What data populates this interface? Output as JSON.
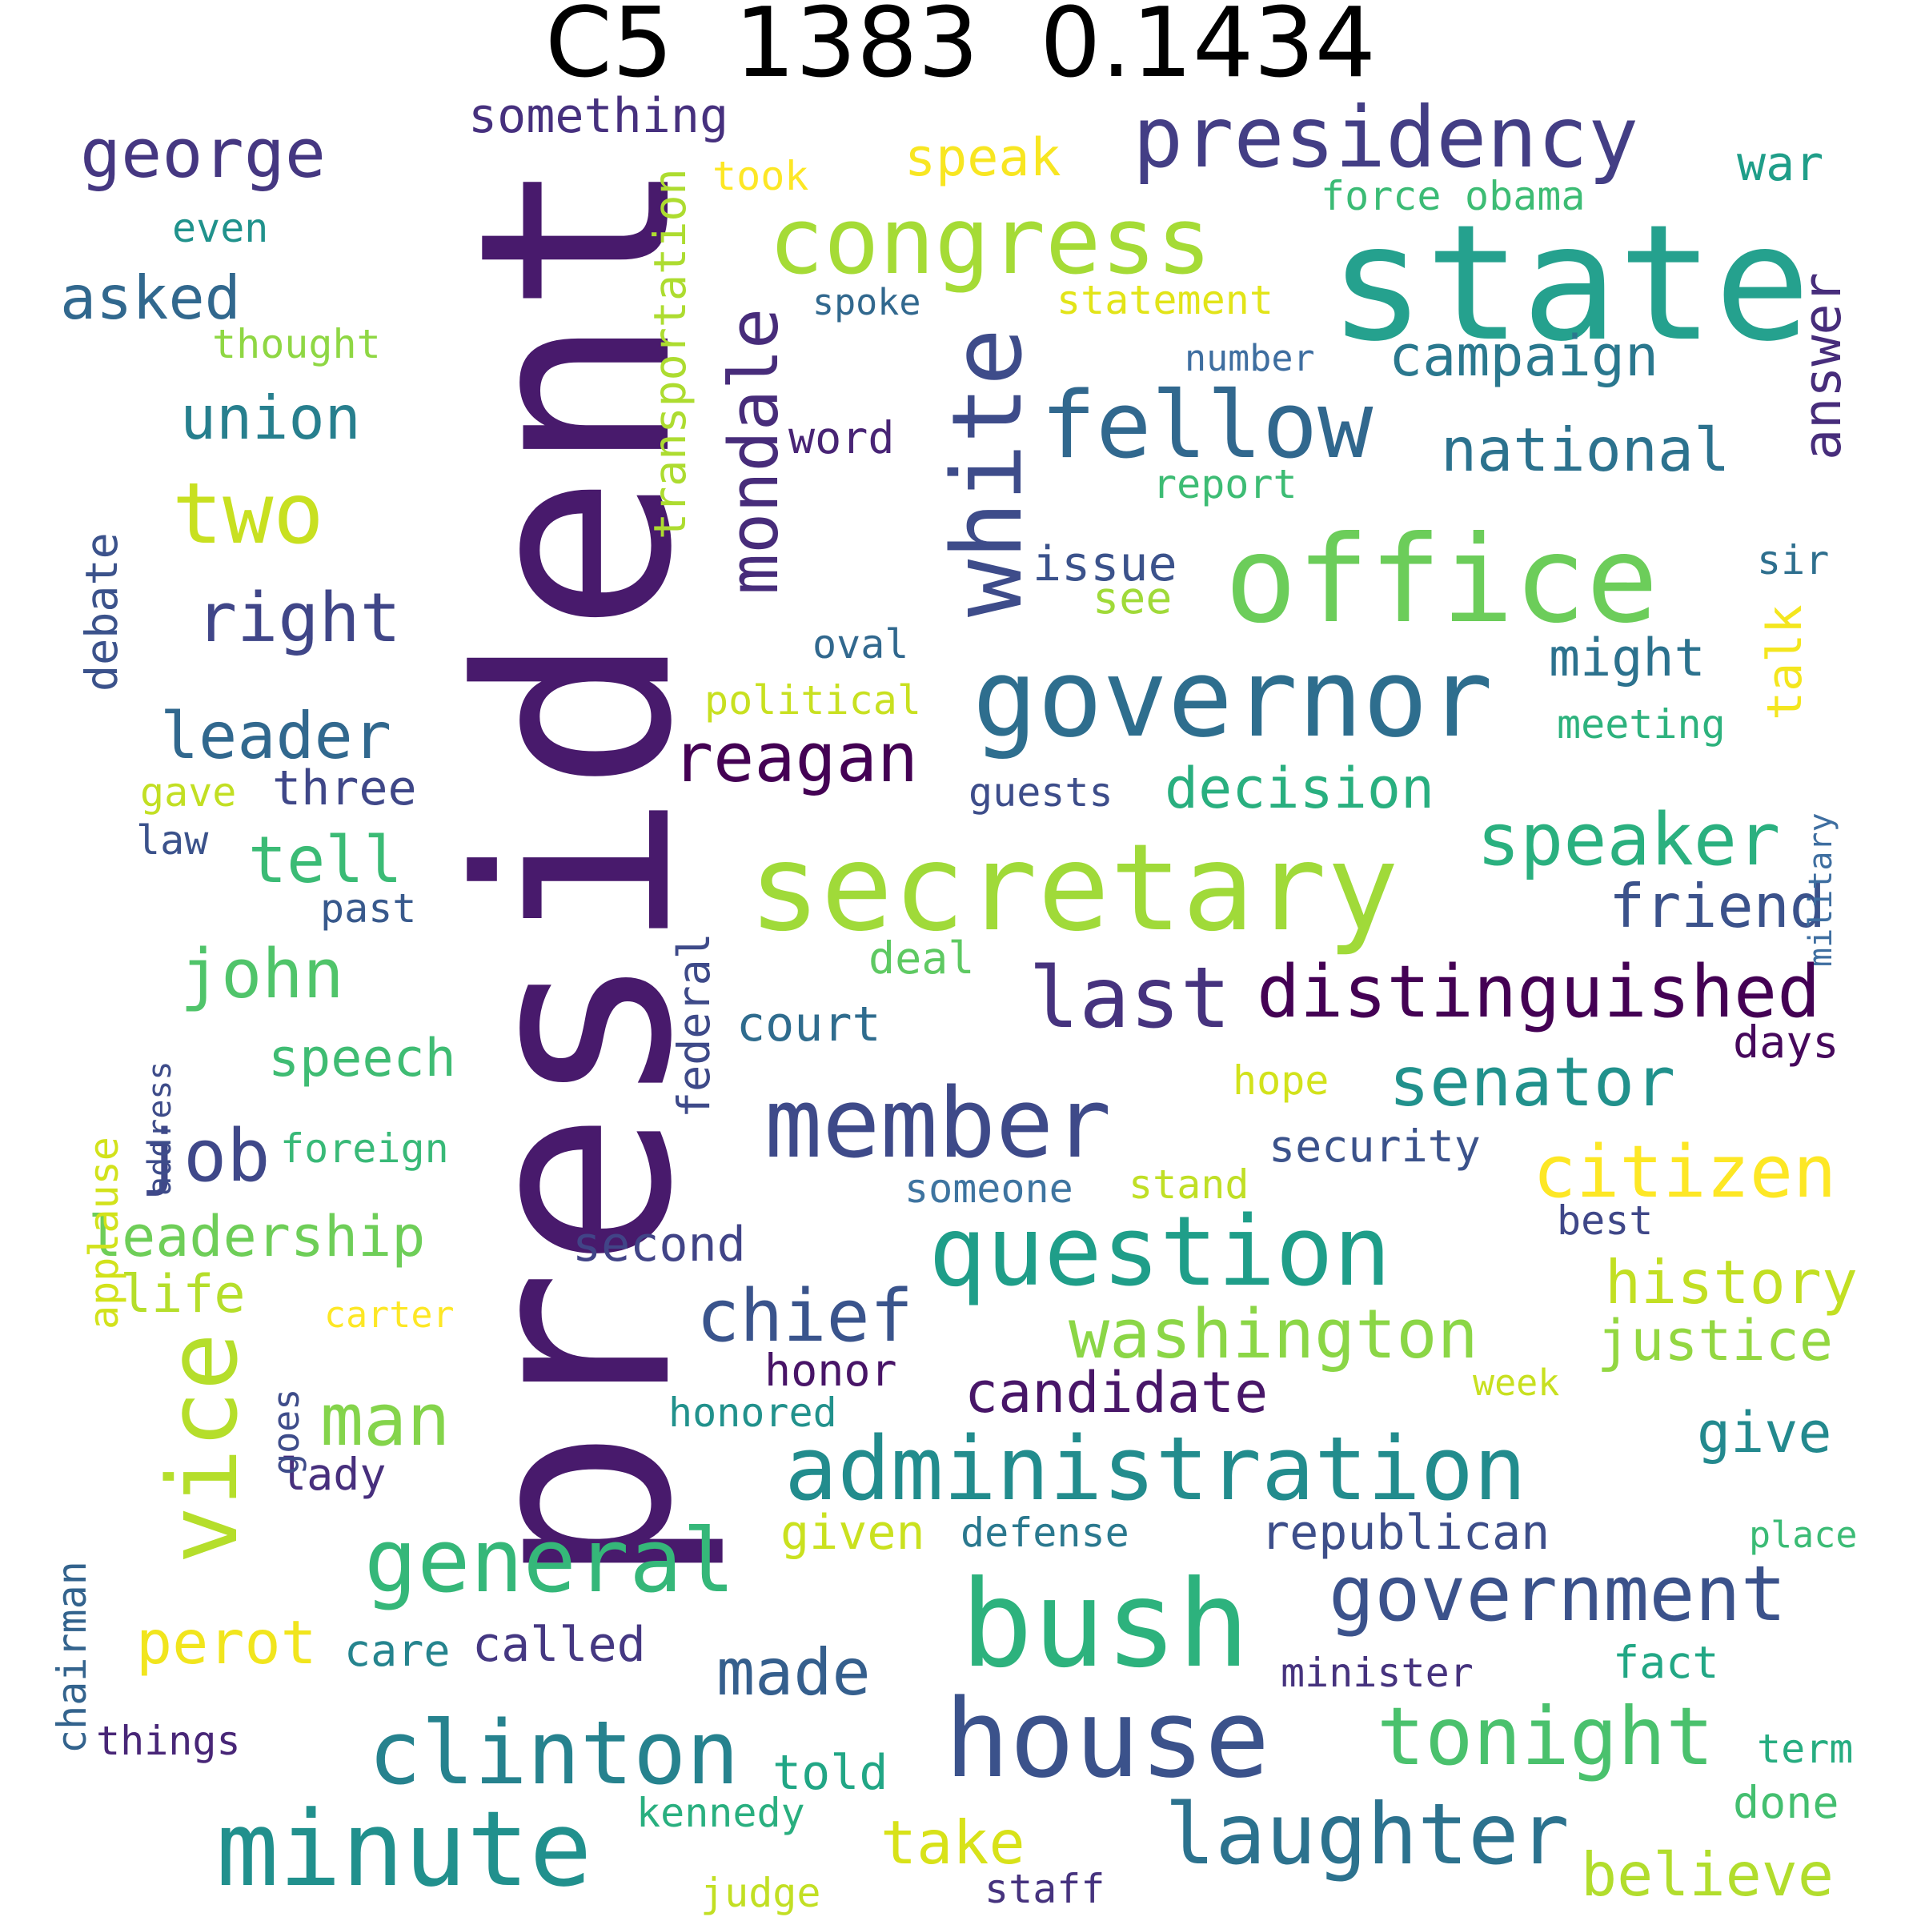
{
  "title": "C5  1383  0.1434",
  "colors": {
    "background": "#ffffff",
    "title": "#000000"
  },
  "words": [
    {
      "text": "president",
      "color": "#481a6c",
      "rotated": true
    },
    {
      "text": "state",
      "color": "#25a18e"
    },
    {
      "text": "secretary",
      "color": "#a0da39"
    },
    {
      "text": "office",
      "color": "#6ccd5a"
    },
    {
      "text": "governor",
      "color": "#2e6e8e"
    },
    {
      "text": "congress",
      "color": "#a5db36"
    },
    {
      "text": "bush",
      "color": "#2db27d"
    },
    {
      "text": "house",
      "color": "#3b528b"
    },
    {
      "text": "minute",
      "color": "#21908d"
    },
    {
      "text": "presidency",
      "color": "#433e85"
    },
    {
      "text": "question",
      "color": "#1f9e89"
    },
    {
      "text": "administration",
      "color": "#228c8d"
    },
    {
      "text": "member",
      "color": "#3e4a89"
    },
    {
      "text": "fellow",
      "color": "#31688e"
    },
    {
      "text": "white",
      "color": "#3e4c8a",
      "rotated": true
    },
    {
      "text": "vice",
      "color": "#b5de2b",
      "rotated": true
    },
    {
      "text": "clinton",
      "color": "#26828e"
    },
    {
      "text": "laughter",
      "color": "#2c728e"
    },
    {
      "text": "government",
      "color": "#3b528b"
    },
    {
      "text": "general",
      "color": "#35b779"
    },
    {
      "text": "distinguished",
      "color": "#440154"
    },
    {
      "text": "last",
      "color": "#46337e"
    },
    {
      "text": "tonight",
      "color": "#4ac16d"
    },
    {
      "text": "washington",
      "color": "#8bd646"
    },
    {
      "text": "speaker",
      "color": "#2ab07f"
    },
    {
      "text": "citizen",
      "color": "#fde725"
    },
    {
      "text": "senator",
      "color": "#21918c"
    },
    {
      "text": "chief",
      "color": "#3a548c"
    },
    {
      "text": "george",
      "color": "#453781"
    },
    {
      "text": "two",
      "color": "#c8e020"
    },
    {
      "text": "mondale",
      "color": "#472c7a",
      "rotated": true
    },
    {
      "text": "reagan",
      "color": "#440154"
    },
    {
      "text": "right",
      "color": "#404688"
    },
    {
      "text": "man",
      "color": "#84d44b"
    },
    {
      "text": "job",
      "color": "#3f4889"
    },
    {
      "text": "john",
      "color": "#50c46a"
    },
    {
      "text": "leader",
      "color": "#31688e"
    },
    {
      "text": "made",
      "color": "#355f8d"
    },
    {
      "text": "history",
      "color": "#c2df23"
    },
    {
      "text": "justice",
      "color": "#93d741"
    },
    {
      "text": "candidate",
      "color": "#481668"
    },
    {
      "text": "believe",
      "color": "#b2dd2d"
    },
    {
      "text": "national",
      "color": "#2c728e"
    },
    {
      "text": "campaign",
      "color": "#2a788e"
    },
    {
      "text": "decision",
      "color": "#29af7f"
    },
    {
      "text": "friend",
      "color": "#3b528b"
    },
    {
      "text": "answer",
      "color": "#472d7b",
      "rotated": true
    },
    {
      "text": "asked",
      "color": "#31688e"
    },
    {
      "text": "union",
      "color": "#277f8e"
    },
    {
      "text": "tell",
      "color": "#3bbb75"
    },
    {
      "text": "speech",
      "color": "#3fbc73"
    },
    {
      "text": "leadership",
      "color": "#6ece58"
    },
    {
      "text": "perot",
      "color": "#f1e51d"
    },
    {
      "text": "give",
      "color": "#23898e"
    },
    {
      "text": "take",
      "color": "#d8e219"
    },
    {
      "text": "might",
      "color": "#2c728e"
    },
    {
      "text": "speak",
      "color": "#f8e621"
    },
    {
      "text": "federal",
      "color": "#3e4a89",
      "rotated": true
    },
    {
      "text": "republican",
      "color": "#3d4e8a"
    },
    {
      "text": "court",
      "color": "#2f6c8e"
    },
    {
      "text": "life",
      "color": "#b5de2b"
    },
    {
      "text": "second",
      "color": "#414487"
    },
    {
      "text": "issue",
      "color": "#3b528b"
    },
    {
      "text": "talk",
      "color": "#f4e61e",
      "rotated": true
    },
    {
      "text": "transportation",
      "color": "#addc30",
      "rotated": true
    },
    {
      "text": "debate",
      "color": "#3b528b",
      "rotated": true
    },
    {
      "text": "three",
      "color": "#3f4788"
    },
    {
      "text": "days",
      "color": "#46085c"
    },
    {
      "text": "honor",
      "color": "#481467"
    },
    {
      "text": "security",
      "color": "#3b528b"
    },
    {
      "text": "war",
      "color": "#1f9e89"
    },
    {
      "text": "word",
      "color": "#482475"
    },
    {
      "text": "fact",
      "color": "#22a785"
    },
    {
      "text": "something",
      "color": "#46307e"
    },
    {
      "text": "done",
      "color": "#44bf70"
    },
    {
      "text": "sir",
      "color": "#2e6f8e"
    },
    {
      "text": "see",
      "color": "#a0da39"
    },
    {
      "text": "chairman",
      "color": "#33638d",
      "rotated": true
    },
    {
      "text": "things",
      "color": "#482677"
    },
    {
      "text": "called",
      "color": "#453882"
    },
    {
      "text": "told",
      "color": "#21a685"
    },
    {
      "text": "lady",
      "color": "#472f7d"
    },
    {
      "text": "statement",
      "color": "#e2e418"
    },
    {
      "text": "oval",
      "color": "#31688e"
    },
    {
      "text": "minister",
      "color": "#46337e"
    },
    {
      "text": "given",
      "color": "#cae11f"
    },
    {
      "text": "defense",
      "color": "#2a788e"
    },
    {
      "text": "foreign",
      "color": "#38b977"
    },
    {
      "text": "guests",
      "color": "#3d4d8a"
    },
    {
      "text": "political",
      "color": "#c8e020"
    },
    {
      "text": "took",
      "color": "#fde725"
    },
    {
      "text": "obama",
      "color": "#3dbc74"
    },
    {
      "text": "force",
      "color": "#3bbb75"
    },
    {
      "text": "past",
      "color": "#38598c"
    },
    {
      "text": "care",
      "color": "#25848e"
    },
    {
      "text": "spoke",
      "color": "#31688e"
    },
    {
      "text": "deal",
      "color": "#5ec962"
    },
    {
      "text": "hope",
      "color": "#d2e21b"
    },
    {
      "text": "kennedy",
      "color": "#29af7f"
    },
    {
      "text": "someone",
      "color": "#3e74a0"
    },
    {
      "text": "stand",
      "color": "#c0df25"
    },
    {
      "text": "honored",
      "color": "#21918c"
    },
    {
      "text": "judge",
      "color": "#c2df23"
    },
    {
      "text": "staff",
      "color": "#46337e"
    },
    {
      "text": "place",
      "color": "#3bbb75"
    },
    {
      "text": "term",
      "color": "#27ad81"
    },
    {
      "text": "best",
      "color": "#3f4788"
    },
    {
      "text": "meeting",
      "color": "#2db27d"
    },
    {
      "text": "report",
      "color": "#3dbc74"
    },
    {
      "text": "number",
      "color": "#3e6ea0"
    },
    {
      "text": "thought",
      "color": "#8fd744"
    },
    {
      "text": "even",
      "color": "#20928c"
    },
    {
      "text": "gave",
      "color": "#c2df23"
    },
    {
      "text": "law",
      "color": "#3b528b"
    },
    {
      "text": "week",
      "color": "#c8e020"
    },
    {
      "text": "carter",
      "color": "#fde725"
    },
    {
      "text": "goes",
      "color": "#3e4c8a",
      "rotated": true
    },
    {
      "text": "applause",
      "color": "#d2e21b",
      "rotated": true
    },
    {
      "text": "address",
      "color": "#3e4c8a",
      "rotated": true
    },
    {
      "text": "military",
      "color": "#3e6ea0",
      "rotated": true
    }
  ]
}
